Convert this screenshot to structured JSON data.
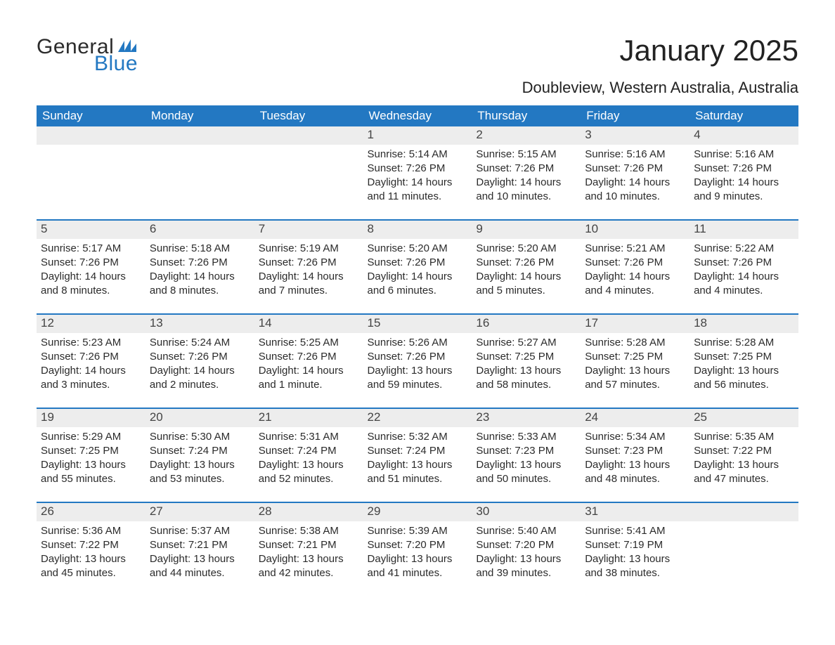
{
  "brand": {
    "word1": "General",
    "word2": "Blue"
  },
  "title": "January 2025",
  "location": "Doubleview, Western Australia, Australia",
  "columns": [
    "Sunday",
    "Monday",
    "Tuesday",
    "Wednesday",
    "Thursday",
    "Friday",
    "Saturday"
  ],
  "colors": {
    "header_bg": "#2378c2",
    "header_text": "#ffffff",
    "strip_bg": "#ededed",
    "strip_border": "#2378c2",
    "text": "#2b2b2b",
    "brand_blue": "#2378c2"
  },
  "fonts": {
    "title_pt": 42,
    "location_pt": 22,
    "header_pt": 17,
    "daynum_pt": 17,
    "body_pt": 15
  },
  "weeks": [
    [
      null,
      null,
      null,
      {
        "n": "1",
        "sunrise": "Sunrise: 5:14 AM",
        "sunset": "Sunset: 7:26 PM",
        "daylight": "Daylight: 14 hours and 11 minutes."
      },
      {
        "n": "2",
        "sunrise": "Sunrise: 5:15 AM",
        "sunset": "Sunset: 7:26 PM",
        "daylight": "Daylight: 14 hours and 10 minutes."
      },
      {
        "n": "3",
        "sunrise": "Sunrise: 5:16 AM",
        "sunset": "Sunset: 7:26 PM",
        "daylight": "Daylight: 14 hours and 10 minutes."
      },
      {
        "n": "4",
        "sunrise": "Sunrise: 5:16 AM",
        "sunset": "Sunset: 7:26 PM",
        "daylight": "Daylight: 14 hours and 9 minutes."
      }
    ],
    [
      {
        "n": "5",
        "sunrise": "Sunrise: 5:17 AM",
        "sunset": "Sunset: 7:26 PM",
        "daylight": "Daylight: 14 hours and 8 minutes."
      },
      {
        "n": "6",
        "sunrise": "Sunrise: 5:18 AM",
        "sunset": "Sunset: 7:26 PM",
        "daylight": "Daylight: 14 hours and 8 minutes."
      },
      {
        "n": "7",
        "sunrise": "Sunrise: 5:19 AM",
        "sunset": "Sunset: 7:26 PM",
        "daylight": "Daylight: 14 hours and 7 minutes."
      },
      {
        "n": "8",
        "sunrise": "Sunrise: 5:20 AM",
        "sunset": "Sunset: 7:26 PM",
        "daylight": "Daylight: 14 hours and 6 minutes."
      },
      {
        "n": "9",
        "sunrise": "Sunrise: 5:20 AM",
        "sunset": "Sunset: 7:26 PM",
        "daylight": "Daylight: 14 hours and 5 minutes."
      },
      {
        "n": "10",
        "sunrise": "Sunrise: 5:21 AM",
        "sunset": "Sunset: 7:26 PM",
        "daylight": "Daylight: 14 hours and 4 minutes."
      },
      {
        "n": "11",
        "sunrise": "Sunrise: 5:22 AM",
        "sunset": "Sunset: 7:26 PM",
        "daylight": "Daylight: 14 hours and 4 minutes."
      }
    ],
    [
      {
        "n": "12",
        "sunrise": "Sunrise: 5:23 AM",
        "sunset": "Sunset: 7:26 PM",
        "daylight": "Daylight: 14 hours and 3 minutes."
      },
      {
        "n": "13",
        "sunrise": "Sunrise: 5:24 AM",
        "sunset": "Sunset: 7:26 PM",
        "daylight": "Daylight: 14 hours and 2 minutes."
      },
      {
        "n": "14",
        "sunrise": "Sunrise: 5:25 AM",
        "sunset": "Sunset: 7:26 PM",
        "daylight": "Daylight: 14 hours and 1 minute."
      },
      {
        "n": "15",
        "sunrise": "Sunrise: 5:26 AM",
        "sunset": "Sunset: 7:26 PM",
        "daylight": "Daylight: 13 hours and 59 minutes."
      },
      {
        "n": "16",
        "sunrise": "Sunrise: 5:27 AM",
        "sunset": "Sunset: 7:25 PM",
        "daylight": "Daylight: 13 hours and 58 minutes."
      },
      {
        "n": "17",
        "sunrise": "Sunrise: 5:28 AM",
        "sunset": "Sunset: 7:25 PM",
        "daylight": "Daylight: 13 hours and 57 minutes."
      },
      {
        "n": "18",
        "sunrise": "Sunrise: 5:28 AM",
        "sunset": "Sunset: 7:25 PM",
        "daylight": "Daylight: 13 hours and 56 minutes."
      }
    ],
    [
      {
        "n": "19",
        "sunrise": "Sunrise: 5:29 AM",
        "sunset": "Sunset: 7:25 PM",
        "daylight": "Daylight: 13 hours and 55 minutes."
      },
      {
        "n": "20",
        "sunrise": "Sunrise: 5:30 AM",
        "sunset": "Sunset: 7:24 PM",
        "daylight": "Daylight: 13 hours and 53 minutes."
      },
      {
        "n": "21",
        "sunrise": "Sunrise: 5:31 AM",
        "sunset": "Sunset: 7:24 PM",
        "daylight": "Daylight: 13 hours and 52 minutes."
      },
      {
        "n": "22",
        "sunrise": "Sunrise: 5:32 AM",
        "sunset": "Sunset: 7:24 PM",
        "daylight": "Daylight: 13 hours and 51 minutes."
      },
      {
        "n": "23",
        "sunrise": "Sunrise: 5:33 AM",
        "sunset": "Sunset: 7:23 PM",
        "daylight": "Daylight: 13 hours and 50 minutes."
      },
      {
        "n": "24",
        "sunrise": "Sunrise: 5:34 AM",
        "sunset": "Sunset: 7:23 PM",
        "daylight": "Daylight: 13 hours and 48 minutes."
      },
      {
        "n": "25",
        "sunrise": "Sunrise: 5:35 AM",
        "sunset": "Sunset: 7:22 PM",
        "daylight": "Daylight: 13 hours and 47 minutes."
      }
    ],
    [
      {
        "n": "26",
        "sunrise": "Sunrise: 5:36 AM",
        "sunset": "Sunset: 7:22 PM",
        "daylight": "Daylight: 13 hours and 45 minutes."
      },
      {
        "n": "27",
        "sunrise": "Sunrise: 5:37 AM",
        "sunset": "Sunset: 7:21 PM",
        "daylight": "Daylight: 13 hours and 44 minutes."
      },
      {
        "n": "28",
        "sunrise": "Sunrise: 5:38 AM",
        "sunset": "Sunset: 7:21 PM",
        "daylight": "Daylight: 13 hours and 42 minutes."
      },
      {
        "n": "29",
        "sunrise": "Sunrise: 5:39 AM",
        "sunset": "Sunset: 7:20 PM",
        "daylight": "Daylight: 13 hours and 41 minutes."
      },
      {
        "n": "30",
        "sunrise": "Sunrise: 5:40 AM",
        "sunset": "Sunset: 7:20 PM",
        "daylight": "Daylight: 13 hours and 39 minutes."
      },
      {
        "n": "31",
        "sunrise": "Sunrise: 5:41 AM",
        "sunset": "Sunset: 7:19 PM",
        "daylight": "Daylight: 13 hours and 38 minutes."
      },
      null
    ]
  ]
}
